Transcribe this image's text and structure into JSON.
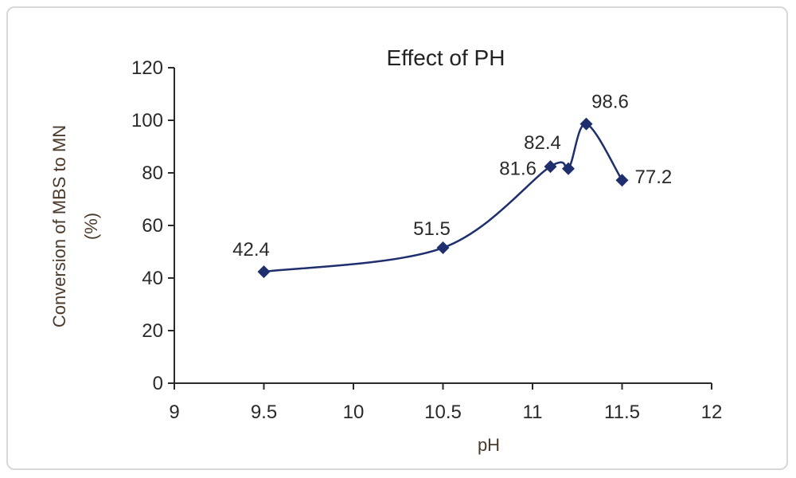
{
  "chart_data": {
    "type": "line",
    "title": "Effect of PH",
    "xlabel": "pH",
    "ylabel_line1": "Conversion of MBS to MN",
    "ylabel_line2": "(%)",
    "xlim": [
      9,
      12
    ],
    "ylim": [
      0,
      120
    ],
    "xticks": [
      "9",
      "9.5",
      "10",
      "10.5",
      "11",
      "11.5",
      "12"
    ],
    "yticks": [
      "0",
      "20",
      "40",
      "60",
      "80",
      "100",
      "120"
    ],
    "grid": false,
    "legend": "none",
    "series": [
      {
        "points": [
          {
            "x": 9.5,
            "y": 42.4,
            "label": "42.4"
          },
          {
            "x": 10.5,
            "y": 51.5,
            "label": "51.5"
          },
          {
            "x": 11.1,
            "y": 82.4,
            "label": "82.4"
          },
          {
            "x": 11.2,
            "y": 81.6,
            "label": "81.6"
          },
          {
            "x": 11.3,
            "y": 98.6,
            "label": "98.6"
          },
          {
            "x": 11.5,
            "y": 77.2,
            "label": "77.2"
          }
        ]
      }
    ],
    "colors": {
      "series": "#1f2f6e",
      "axis": "#2a2a2a"
    }
  }
}
